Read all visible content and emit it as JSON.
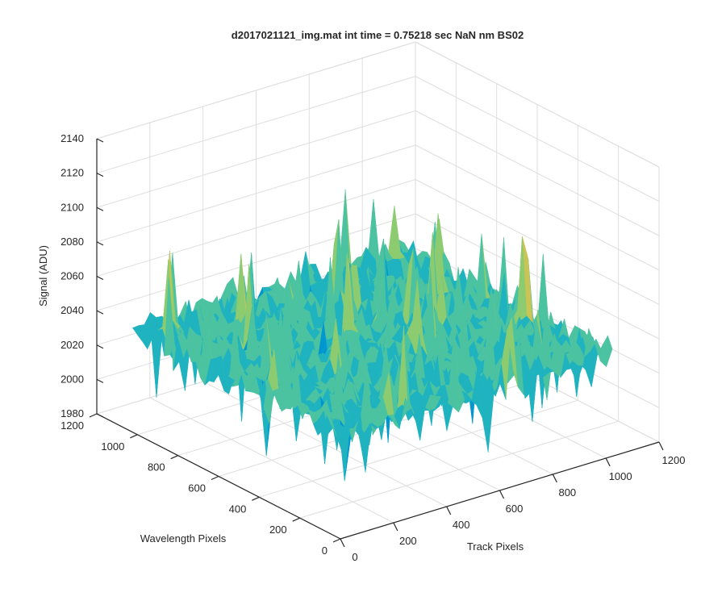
{
  "chart_data": {
    "type": "surface",
    "title": "d2017021121_img.mat int time = 0.75218 sec  NaN nm BS02",
    "xlabel": "Track Pixels",
    "ylabel": "Wavelength Pixels",
    "zlabel": "Signal (ADU)",
    "xlim": [
      0,
      1200
    ],
    "ylim": [
      0,
      1200
    ],
    "zlim": [
      1980,
      2140
    ],
    "x_ticks": [
      0,
      200,
      400,
      600,
      800,
      1000,
      1200
    ],
    "y_ticks": [
      0,
      200,
      400,
      600,
      800,
      1000,
      1200
    ],
    "z_ticks": [
      1980,
      2000,
      2020,
      2040,
      2060,
      2080,
      2100,
      2120,
      2140
    ],
    "x_extent": [
      0,
      1024
    ],
    "y_extent": [
      0,
      1024
    ],
    "z_typical_range": [
      2010,
      2070
    ],
    "z_mean": 2040,
    "colormap": [
      "#0072bd",
      "#0096d0",
      "#1fb3c0",
      "#4cc3a0",
      "#8ccb70",
      "#c9c455"
    ],
    "grid": true,
    "view": "3d-isometric"
  }
}
